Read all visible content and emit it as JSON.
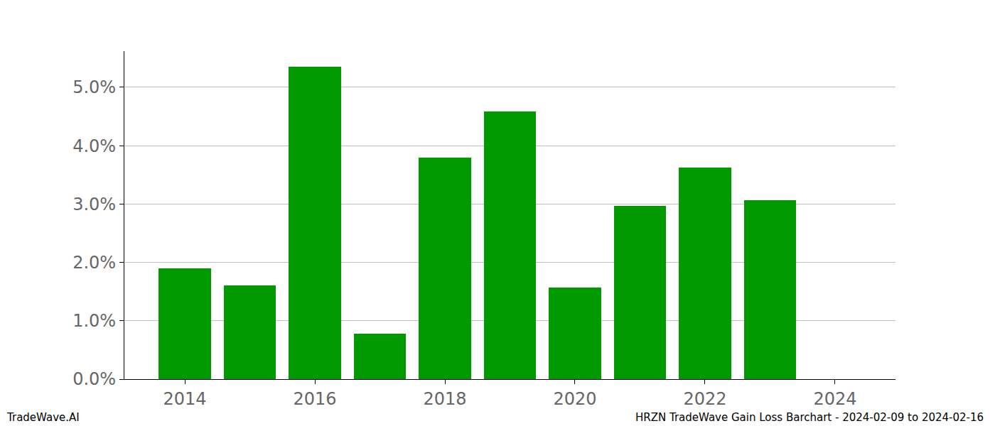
{
  "chart_data": {
    "type": "bar",
    "x": [
      2014,
      2015,
      2016,
      2017,
      2018,
      2019,
      2020,
      2021,
      2022,
      2023
    ],
    "values": [
      1.9,
      1.6,
      5.35,
      0.78,
      3.8,
      4.58,
      1.57,
      2.97,
      3.62,
      3.06
    ],
    "color": "#009900",
    "xlim": [
      2013.07,
      2024.93
    ],
    "xticks": [
      2014,
      2016,
      2018,
      2020,
      2022,
      2024
    ],
    "ylim": [
      0,
      5.62
    ],
    "yticks": [
      {
        "value": 0,
        "label": "0.0%"
      },
      {
        "value": 1,
        "label": "1.0%"
      },
      {
        "value": 2,
        "label": "2.0%"
      },
      {
        "value": 3,
        "label": "3.0%"
      },
      {
        "value": 4,
        "label": "4.0%"
      },
      {
        "value": 5,
        "label": "5.0%"
      }
    ],
    "grid": true,
    "annotations": [
      "TradeWave.AI",
      "HRZN TradeWave Gain Loss Barchart - 2024-02-09 to 2024-02-16"
    ]
  }
}
